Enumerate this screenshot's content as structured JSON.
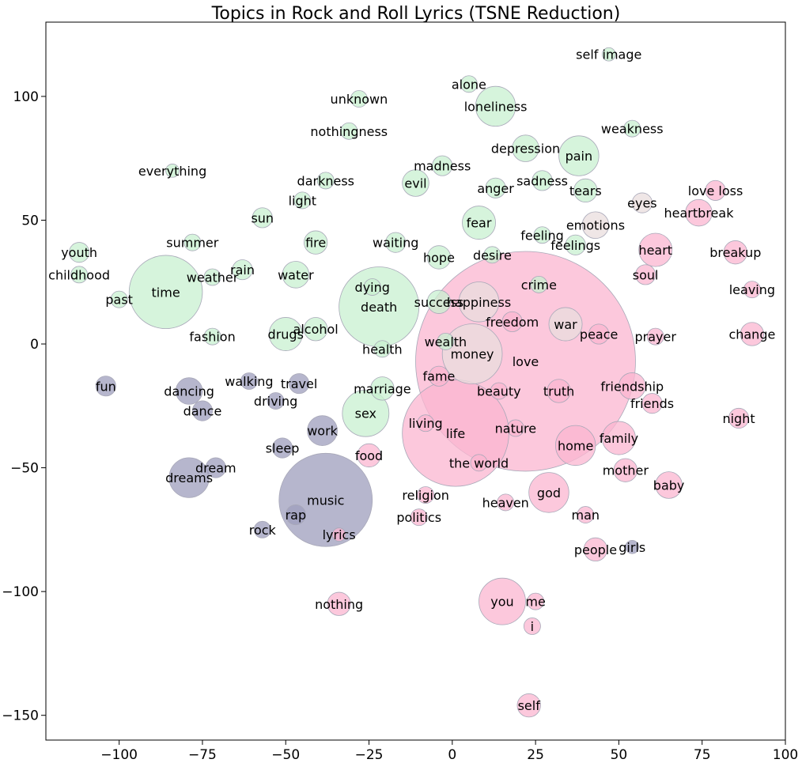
{
  "chart_data": {
    "type": "scatter",
    "title": "Topics in Rock and Roll Lyrics (TSNE Reduction)",
    "xlabel": "",
    "ylabel": "",
    "xlim": [
      -122,
      100
    ],
    "ylim": [
      -160,
      130
    ],
    "xticks": [
      -100,
      -75,
      -50,
      -25,
      0,
      25,
      50,
      75,
      100
    ],
    "xtick_labels": [
      "−100",
      "−75",
      "−50",
      "−25",
      "0",
      "25",
      "50",
      "75",
      "100"
    ],
    "yticks": [
      -150,
      -100,
      -50,
      0,
      50,
      100
    ],
    "ytick_labels": [
      "−150",
      "−100",
      "−50",
      "0",
      "50",
      "100"
    ],
    "grid": false,
    "legend": "none",
    "colors": {
      "green": "#c8f0d0",
      "purple": "#9e9ebc",
      "pink": "#fbb6d0",
      "mix": "#eadede"
    },
    "points": [
      {
        "label": "self image",
        "x": 47,
        "y": 117,
        "r": 2,
        "group": "green"
      },
      {
        "label": "alone",
        "x": 5,
        "y": 105,
        "r": 2.5,
        "group": "green"
      },
      {
        "label": "unknown",
        "x": -28,
        "y": 99,
        "r": 2.5,
        "group": "green"
      },
      {
        "label": "loneliness",
        "x": 13,
        "y": 96,
        "r": 6,
        "group": "green"
      },
      {
        "label": "weakness",
        "x": 54,
        "y": 87,
        "r": 2.5,
        "group": "green"
      },
      {
        "label": "nothingness",
        "x": -31,
        "y": 86,
        "r": 2.5,
        "group": "green"
      },
      {
        "label": "depression",
        "x": 22,
        "y": 79,
        "r": 4,
        "group": "green"
      },
      {
        "label": "pain",
        "x": 38,
        "y": 76,
        "r": 6,
        "group": "green"
      },
      {
        "label": "madness",
        "x": -3,
        "y": 72,
        "r": 3,
        "group": "green"
      },
      {
        "label": "everything",
        "x": -84,
        "y": 70,
        "r": 2,
        "group": "green"
      },
      {
        "label": "sadness",
        "x": 27,
        "y": 66,
        "r": 3,
        "group": "green"
      },
      {
        "label": "darkness",
        "x": -38,
        "y": 66,
        "r": 2.5,
        "group": "green"
      },
      {
        "label": "evil",
        "x": -11,
        "y": 65,
        "r": 4,
        "group": "green"
      },
      {
        "label": "anger",
        "x": 13,
        "y": 63,
        "r": 3,
        "group": "green"
      },
      {
        "label": "tears",
        "x": 40,
        "y": 62,
        "r": 3.5,
        "group": "green"
      },
      {
        "label": "love loss",
        "x": 79,
        "y": 62,
        "r": 3,
        "group": "pink"
      },
      {
        "label": "light",
        "x": -45,
        "y": 58,
        "r": 2.5,
        "group": "green"
      },
      {
        "label": "eyes",
        "x": 57,
        "y": 57,
        "r": 3,
        "group": "mix"
      },
      {
        "label": "heartbreak",
        "x": 74,
        "y": 53,
        "r": 4,
        "group": "pink"
      },
      {
        "label": "sun",
        "x": -57,
        "y": 51,
        "r": 3,
        "group": "green"
      },
      {
        "label": "fear",
        "x": 8,
        "y": 49,
        "r": 5,
        "group": "green"
      },
      {
        "label": "emotions",
        "x": 43,
        "y": 48,
        "r": 4,
        "group": "mix"
      },
      {
        "label": "feeling",
        "x": 27,
        "y": 44,
        "r": 2.5,
        "group": "green"
      },
      {
        "label": "summer",
        "x": -78,
        "y": 41,
        "r": 2.5,
        "group": "green"
      },
      {
        "label": "waiting",
        "x": -17,
        "y": 41,
        "r": 3,
        "group": "green"
      },
      {
        "label": "fire",
        "x": -41,
        "y": 41,
        "r": 3.5,
        "group": "green"
      },
      {
        "label": "feelings",
        "x": 37,
        "y": 40,
        "r": 3,
        "group": "green"
      },
      {
        "label": "heart",
        "x": 61,
        "y": 38,
        "r": 5,
        "group": "pink"
      },
      {
        "label": "breakup",
        "x": 85,
        "y": 37,
        "r": 3.5,
        "group": "pink"
      },
      {
        "label": "youth",
        "x": -112,
        "y": 37,
        "r": 3,
        "group": "green"
      },
      {
        "label": "desire",
        "x": 12,
        "y": 36,
        "r": 2.5,
        "group": "green"
      },
      {
        "label": "hope",
        "x": -4,
        "y": 35,
        "r": 3.5,
        "group": "green"
      },
      {
        "label": "rain",
        "x": -63,
        "y": 30,
        "r": 3,
        "group": "green"
      },
      {
        "label": "soul",
        "x": 58,
        "y": 28,
        "r": 3,
        "group": "pink"
      },
      {
        "label": "water",
        "x": -47,
        "y": 28,
        "r": 4,
        "group": "green"
      },
      {
        "label": "childhood",
        "x": -112,
        "y": 28,
        "r": 2.5,
        "group": "green"
      },
      {
        "label": "weather",
        "x": -72,
        "y": 27,
        "r": 2.5,
        "group": "green"
      },
      {
        "label": "crime",
        "x": 26,
        "y": 24,
        "r": 2.5,
        "group": "green"
      },
      {
        "label": "dying",
        "x": -24,
        "y": 23,
        "r": 2.5,
        "group": "green"
      },
      {
        "label": "leaving",
        "x": 90,
        "y": 22,
        "r": 2.5,
        "group": "pink"
      },
      {
        "label": "time",
        "x": -86,
        "y": 21,
        "r": 11,
        "group": "green"
      },
      {
        "label": "past",
        "x": -100,
        "y": 18,
        "r": 2.5,
        "group": "green"
      },
      {
        "label": "happiness",
        "x": 8,
        "y": 17,
        "r": 6,
        "group": "mix"
      },
      {
        "label": "success",
        "x": -4,
        "y": 17,
        "r": 3.5,
        "group": "green"
      },
      {
        "label": "death",
        "x": -22,
        "y": 15,
        "r": 12,
        "group": "green"
      },
      {
        "label": "freedom",
        "x": 18,
        "y": 9,
        "r": 3,
        "group": "pink"
      },
      {
        "label": "war",
        "x": 34,
        "y": 8,
        "r": 5,
        "group": "mix"
      },
      {
        "label": "alcohol",
        "x": -41,
        "y": 6,
        "r": 3.5,
        "group": "green"
      },
      {
        "label": "drugs",
        "x": -50,
        "y": 4,
        "r": 5,
        "group": "green"
      },
      {
        "label": "change",
        "x": 90,
        "y": 4,
        "r": 3.5,
        "group": "pink"
      },
      {
        "label": "love",
        "x": 22,
        "y": -7,
        "r": 33,
        "group": "pink"
      },
      {
        "label": "peace",
        "x": 44,
        "y": 4,
        "r": 3,
        "group": "pink"
      },
      {
        "label": "prayer",
        "x": 61,
        "y": 3,
        "r": 2.5,
        "group": "pink"
      },
      {
        "label": "fashion",
        "x": -72,
        "y": 3,
        "r": 2.5,
        "group": "green"
      },
      {
        "label": "wealth",
        "x": -2,
        "y": 1,
        "r": 2.5,
        "group": "green"
      },
      {
        "label": "health",
        "x": -21,
        "y": -2,
        "r": 2.5,
        "group": "green"
      },
      {
        "label": "money",
        "x": 6,
        "y": -4,
        "r": 9,
        "group": "mix"
      },
      {
        "label": "fame",
        "x": -4,
        "y": -13,
        "r": 3,
        "group": "pink"
      },
      {
        "label": "fun",
        "x": -104,
        "y": -17,
        "r": 3,
        "group": "purple"
      },
      {
        "label": "walking",
        "x": -61,
        "y": -15,
        "r": 2.5,
        "group": "purple"
      },
      {
        "label": "travel",
        "x": -46,
        "y": -16,
        "r": 3,
        "group": "purple"
      },
      {
        "label": "friendship",
        "x": 54,
        "y": -17,
        "r": 4,
        "group": "pink"
      },
      {
        "label": "marriage",
        "x": -21,
        "y": -18,
        "r": 3.5,
        "group": "green"
      },
      {
        "label": "truth",
        "x": 32,
        "y": -19,
        "r": 3.5,
        "group": "pink"
      },
      {
        "label": "dancing",
        "x": -79,
        "y": -19,
        "r": 4,
        "group": "purple"
      },
      {
        "label": "beauty",
        "x": 14,
        "y": -19,
        "r": 2.5,
        "group": "pink"
      },
      {
        "label": "driving",
        "x": -53,
        "y": -23,
        "r": 2.5,
        "group": "purple"
      },
      {
        "label": "friends",
        "x": 60,
        "y": -24,
        "r": 3,
        "group": "pink"
      },
      {
        "label": "dance",
        "x": -75,
        "y": -27,
        "r": 3,
        "group": "purple"
      },
      {
        "label": "sex",
        "x": -26,
        "y": -28,
        "r": 7,
        "group": "green"
      },
      {
        "label": "night",
        "x": 86,
        "y": -30,
        "r": 3,
        "group": "pink"
      },
      {
        "label": "living",
        "x": -8,
        "y": -32,
        "r": 2.5,
        "group": "pink"
      },
      {
        "label": "nature",
        "x": 19,
        "y": -34,
        "r": 2.5,
        "group": "pink"
      },
      {
        "label": "life",
        "x": 1,
        "y": -36,
        "r": 16,
        "group": "pink"
      },
      {
        "label": "work",
        "x": -39,
        "y": -35,
        "r": 4.5,
        "group": "purple"
      },
      {
        "label": "family",
        "x": 50,
        "y": -38,
        "r": 5,
        "group": "pink"
      },
      {
        "label": "home",
        "x": 37,
        "y": -41,
        "r": 6,
        "group": "pink"
      },
      {
        "label": "sleep",
        "x": -51,
        "y": -42,
        "r": 3,
        "group": "purple"
      },
      {
        "label": "food",
        "x": -25,
        "y": -45,
        "r": 3.5,
        "group": "pink"
      },
      {
        "label": "the world",
        "x": 8,
        "y": -48,
        "r": 2.5,
        "group": "pink"
      },
      {
        "label": "dream",
        "x": -71,
        "y": -50,
        "r": 3,
        "group": "purple"
      },
      {
        "label": "mother",
        "x": 52,
        "y": -51,
        "r": 3.5,
        "group": "pink"
      },
      {
        "label": "dreams",
        "x": -79,
        "y": -54,
        "r": 6,
        "group": "purple"
      },
      {
        "label": "baby",
        "x": 65,
        "y": -57,
        "r": 4,
        "group": "pink"
      },
      {
        "label": "god",
        "x": 29,
        "y": -60,
        "r": 6,
        "group": "pink"
      },
      {
        "label": "religion",
        "x": -8,
        "y": -61,
        "r": 2.5,
        "group": "pink"
      },
      {
        "label": "music",
        "x": -38,
        "y": -63,
        "r": 14,
        "group": "purple"
      },
      {
        "label": "heaven",
        "x": 16,
        "y": -64,
        "r": 2.5,
        "group": "pink"
      },
      {
        "label": "rap",
        "x": -47,
        "y": -69,
        "r": 3,
        "group": "purple"
      },
      {
        "label": "man",
        "x": 40,
        "y": -69,
        "r": 2.5,
        "group": "pink"
      },
      {
        "label": "politics",
        "x": -10,
        "y": -70,
        "r": 2.5,
        "group": "pink"
      },
      {
        "label": "rock",
        "x": -57,
        "y": -75,
        "r": 2.5,
        "group": "purple"
      },
      {
        "label": "lyrics",
        "x": -34,
        "y": -77,
        "r": 2,
        "group": "pink"
      },
      {
        "label": "girls",
        "x": 54,
        "y": -82,
        "r": 2,
        "group": "purple"
      },
      {
        "label": "people",
        "x": 43,
        "y": -83,
        "r": 3.5,
        "group": "pink"
      },
      {
        "label": "you",
        "x": 15,
        "y": -104,
        "r": 7,
        "group": "pink"
      },
      {
        "label": "me",
        "x": 25,
        "y": -104,
        "r": 2.5,
        "group": "pink"
      },
      {
        "label": "nothing",
        "x": -34,
        "y": -105,
        "r": 3.5,
        "group": "pink"
      },
      {
        "label": "i",
        "x": 24,
        "y": -114,
        "r": 2.5,
        "group": "pink"
      },
      {
        "label": "self",
        "x": 23,
        "y": -146,
        "r": 3.5,
        "group": "pink"
      }
    ]
  }
}
